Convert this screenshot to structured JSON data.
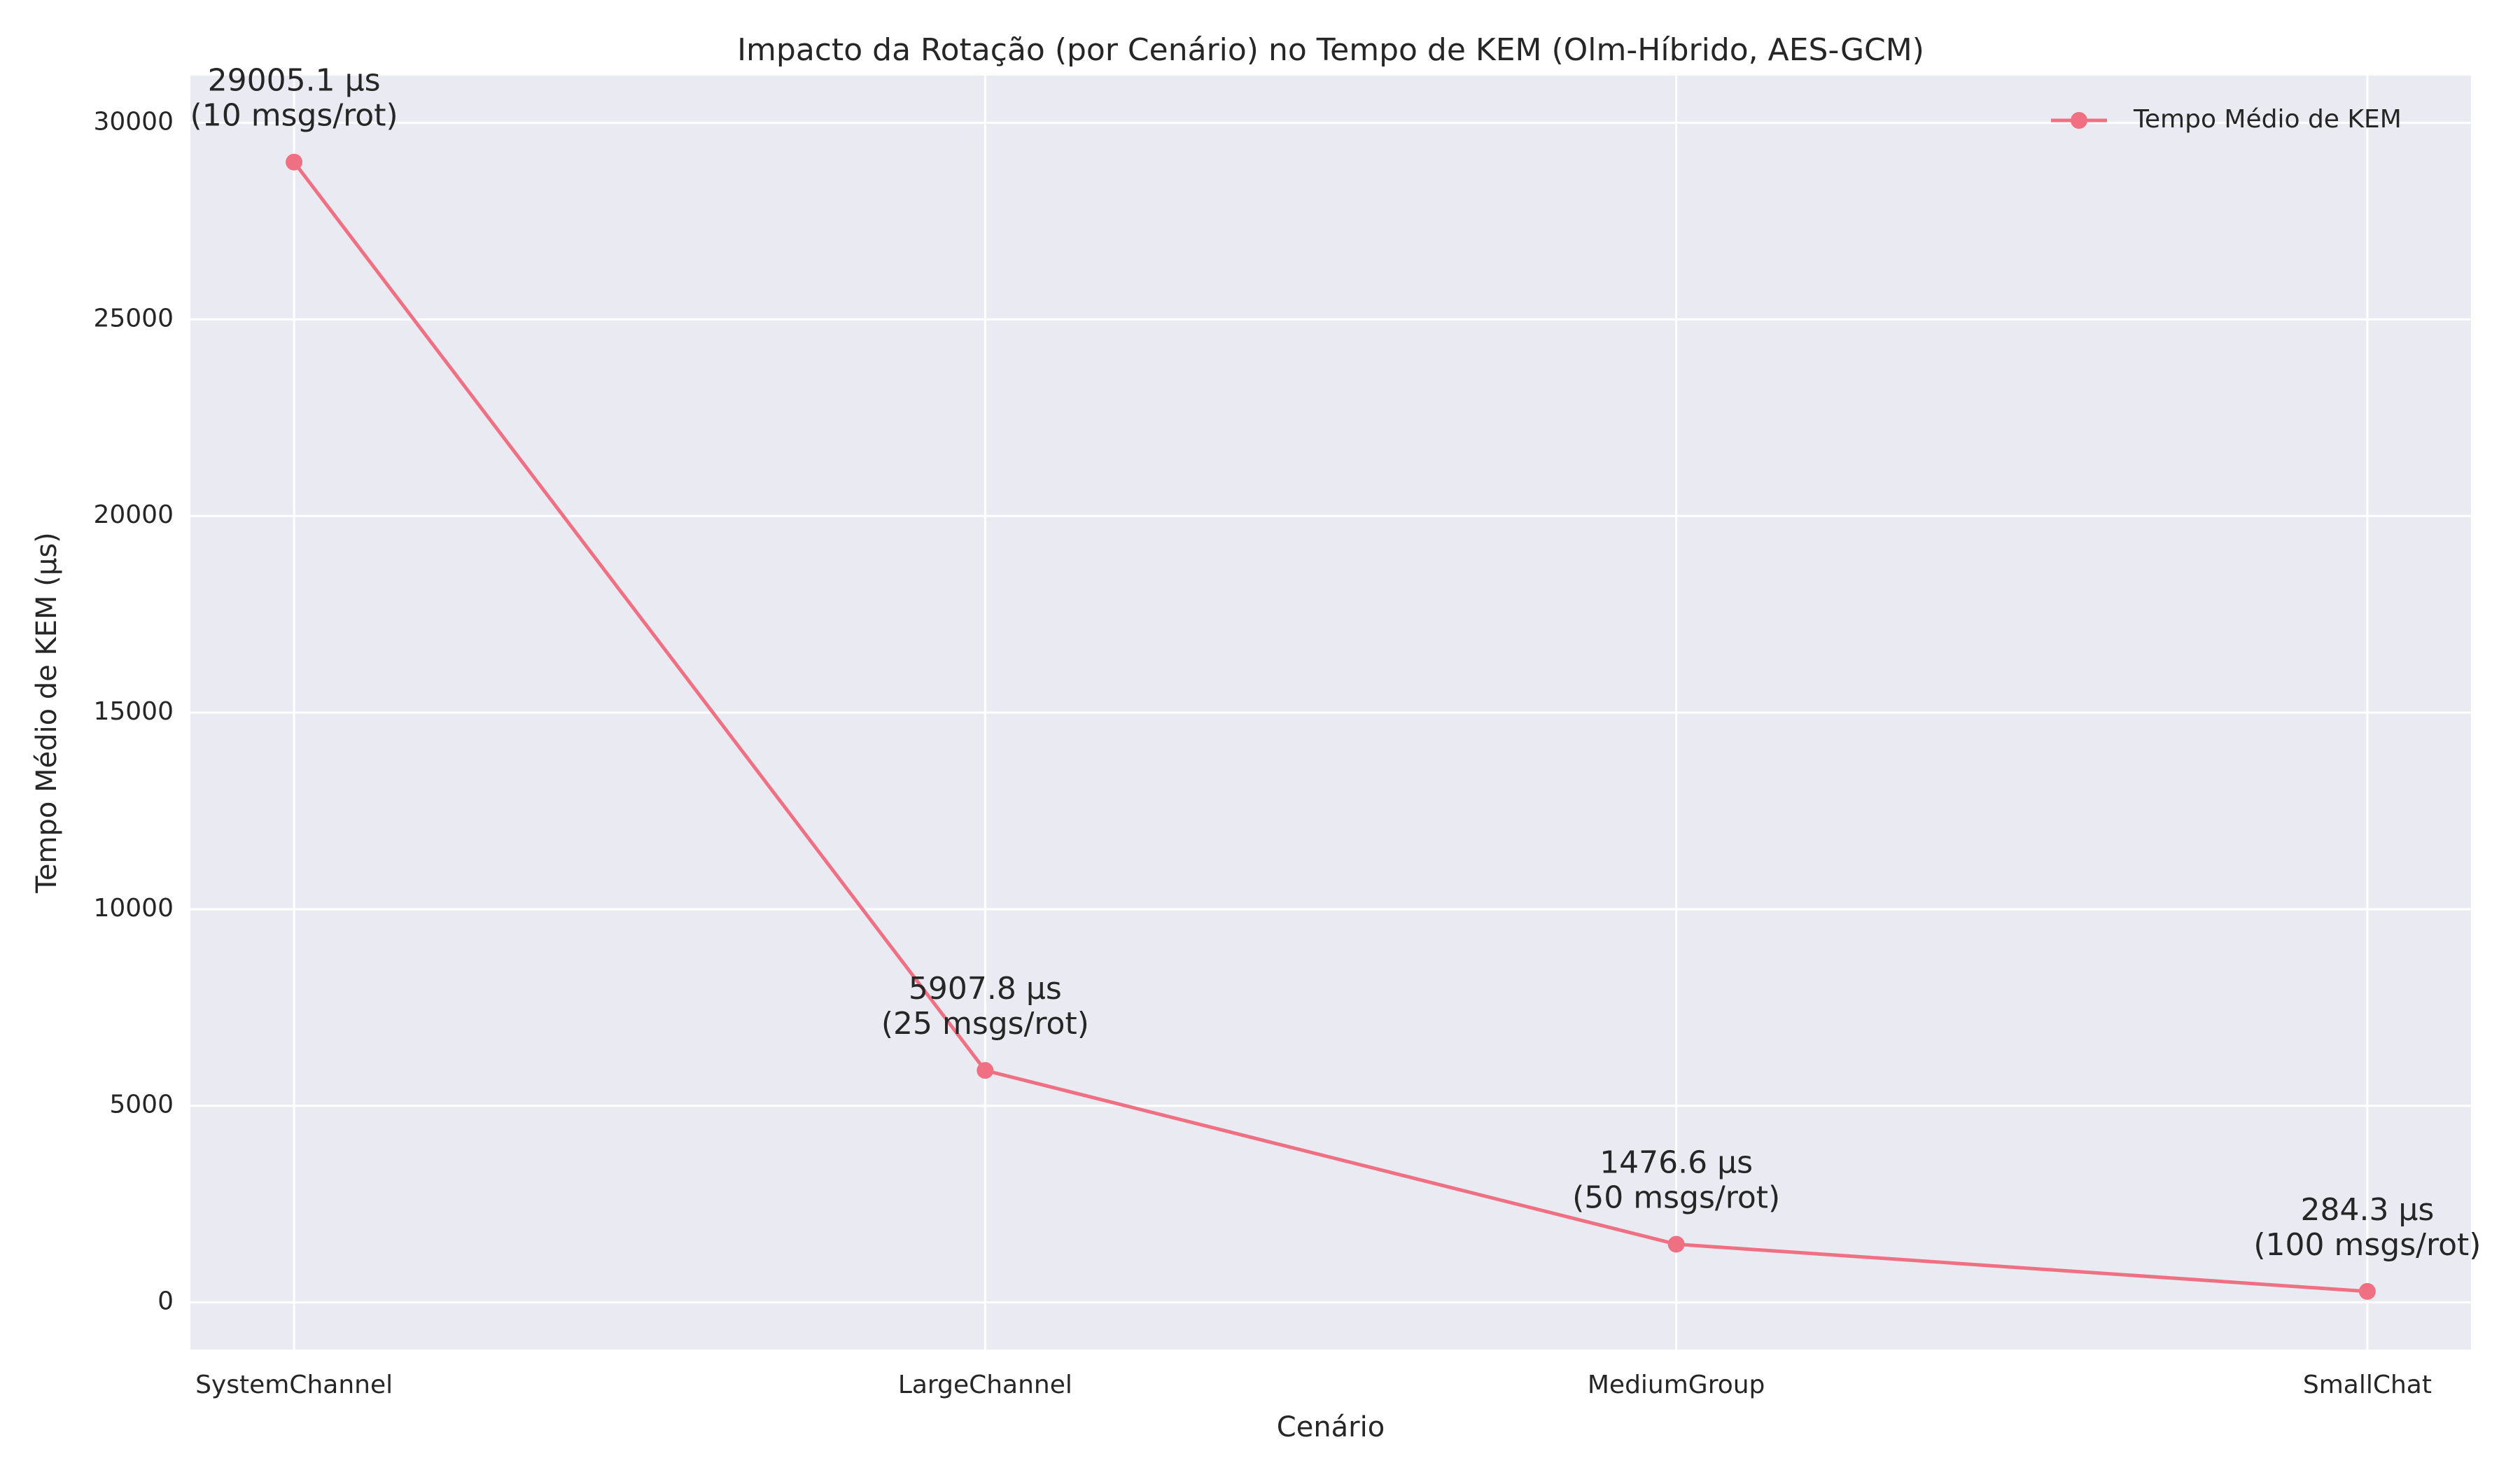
{
  "chart_data": {
    "type": "line",
    "title": "Impacto da Rotação (por Cenário) no Tempo de KEM (Olm-Híbrido, AES-GCM)",
    "xlabel": "Cenário",
    "ylabel": "Tempo Médio de KEM (µs)",
    "categories": [
      "SystemChannel",
      "LargeChannel",
      "MediumGroup",
      "SmallChat"
    ],
    "ylim": [
      -1200,
      31200
    ],
    "yticks": [
      0,
      5000,
      10000,
      15000,
      20000,
      25000,
      30000
    ],
    "ytick_labels": [
      "0",
      "5000",
      "10000",
      "15000",
      "20000",
      "25000",
      "30000"
    ],
    "grid": true,
    "legend_position": "top-right",
    "series": [
      {
        "name": "Tempo Médio de KEM",
        "color": "#f07083",
        "values": [
          29000,
          5900,
          1480,
          280
        ]
      }
    ],
    "annotations": [
      {
        "category": "SystemChannel",
        "lines": [
          "29005.1 µs",
          "(10 msgs/rot)"
        ]
      },
      {
        "category": "LargeChannel",
        "lines": [
          "5907.8 µs",
          "(25 msgs/rot)"
        ]
      },
      {
        "category": "MediumGroup",
        "lines": [
          "1476.6 µs",
          "(50 msgs/rot)"
        ]
      },
      {
        "category": "SmallChat",
        "lines": [
          "284.3 µs",
          "(100 msgs/rot)"
        ]
      }
    ]
  }
}
